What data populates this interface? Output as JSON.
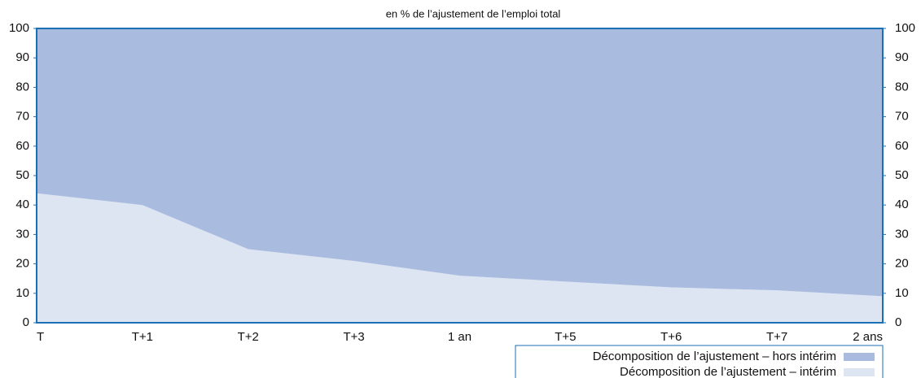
{
  "chart_data": {
    "type": "stacked_area",
    "title": "en % de l’ajustement de l’emploi total",
    "categories": [
      "T",
      "T+1",
      "T+2",
      "T+3",
      "1 an",
      "T+5",
      "T+6",
      "T+7",
      "2 ans"
    ],
    "series": [
      {
        "name": "Décomposition de l’ajustement – intérim",
        "color": "#dde4f2",
        "values": [
          44,
          40,
          25,
          21,
          16,
          14,
          12,
          11,
          9
        ]
      },
      {
        "name": "Décomposition de l’ajustement – hors intérim",
        "color": "#a9bcdf",
        "values": [
          56,
          60,
          75,
          79,
          84,
          86,
          88,
          89,
          91
        ]
      }
    ],
    "ylim": [
      0,
      100
    ],
    "yticks": [
      0,
      10,
      20,
      30,
      40,
      50,
      60,
      70,
      80,
      90,
      100
    ],
    "y2lim": [
      0,
      100
    ],
    "y2ticks": [
      0,
      10,
      20,
      30,
      40,
      50,
      60,
      70,
      80,
      90,
      100
    ],
    "axis_color": "#1a6fb5"
  }
}
